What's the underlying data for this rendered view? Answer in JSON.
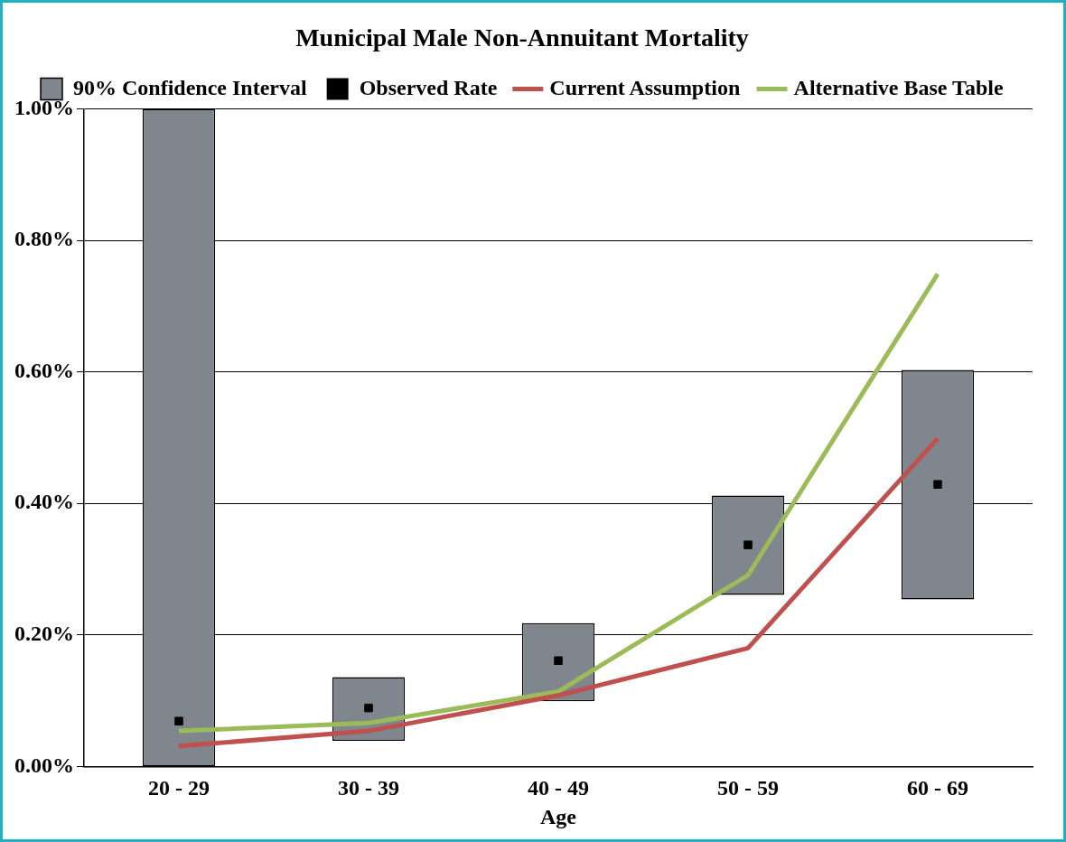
{
  "chart_data": {
    "type": "bar",
    "title": "Municipal Male Non-Annuitant Mortality",
    "xlabel": "Age",
    "categories": [
      "20 - 29",
      "30 - 39",
      "40 - 49",
      "50 - 59",
      "60 - 69"
    ],
    "series": [
      {
        "name": "90% Confidence Interval",
        "color": "#7f868d",
        "base": [
          0,
          0.039,
          0.099,
          0.261,
          0.254
        ],
        "values": [
          1.0,
          0.097,
          0.119,
          0.151,
          0.349
        ]
      },
      {
        "name": "Observed Rate",
        "type": "scatter",
        "color": "#000000",
        "marker": "square",
        "x": [
          "20 - 29",
          "30 - 39",
          "40 - 49",
          "50 - 59",
          "60 - 69"
        ],
        "values": [
          0.069,
          0.089,
          0.161,
          0.337,
          0.429
        ]
      },
      {
        "name": "Current Assumption",
        "type": "line",
        "color": "#c0504d",
        "values": [
          0.031,
          0.054,
          0.108,
          0.18,
          0.499
        ]
      },
      {
        "name": "Alternative Base Table",
        "type": "line",
        "color": "#9bbb59",
        "values": [
          0.054,
          0.066,
          0.114,
          0.291,
          0.749
        ]
      }
    ],
    "ylim": [
      0,
      1.0
    ],
    "yticks": [
      {
        "value": 0,
        "label": "0.00%"
      },
      {
        "value": 0.2,
        "label": "0.20%"
      },
      {
        "value": 0.4,
        "label": "0.40%"
      },
      {
        "value": 0.6,
        "label": "0.60%"
      },
      {
        "value": 0.8,
        "label": "0.80%"
      },
      {
        "value": 1.0,
        "label": "1.00%"
      }
    ],
    "grid": "y",
    "legend": "top",
    "marker": "none",
    "line_style": "solid"
  }
}
